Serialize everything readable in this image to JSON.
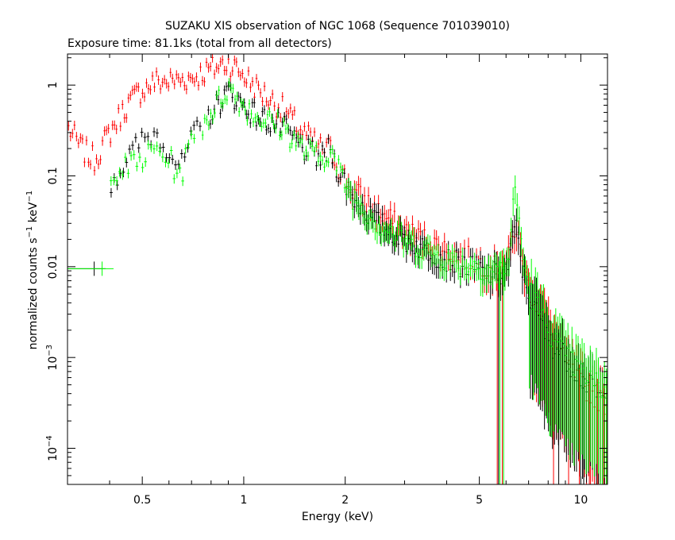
{
  "chart_data": {
    "type": "scatter",
    "title": "SUZAKU XIS observation of NGC 1068 (Sequence 701039010)",
    "subtitle": "Exposure time: 81.1ks (total from all detectors)",
    "xlabel": "Energy (keV)",
    "ylabel_main": "normalized counts s",
    "ylabel_exp1": "−1",
    "ylabel_mid": " keV",
    "ylabel_exp2": "−1",
    "x_scale": "log",
    "y_scale": "log",
    "xlim": [
      0.3,
      12
    ],
    "ylim": [
      4e-05,
      2.2
    ],
    "x_ticks": [
      {
        "value": 0.5,
        "label": "0.5"
      },
      {
        "value": 1,
        "label": "1"
      },
      {
        "value": 2,
        "label": "2"
      },
      {
        "value": 5,
        "label": "5"
      },
      {
        "value": 10,
        "label": "10"
      }
    ],
    "y_ticks": [
      {
        "value": 1,
        "label": "1"
      },
      {
        "value": 0.1,
        "label": "0.1"
      },
      {
        "value": 0.01,
        "label": "0.01"
      },
      {
        "value": 0.001,
        "base": "10",
        "exp": "−3"
      },
      {
        "value": 0.0001,
        "base": "10",
        "exp": "−4"
      }
    ],
    "series": [
      {
        "color": "#ff0000",
        "anchors": [
          [
            0.3,
            0.35
          ],
          [
            0.33,
            0.2
          ],
          [
            0.36,
            0.15
          ],
          [
            0.4,
            0.3
          ],
          [
            0.45,
            0.6
          ],
          [
            0.5,
            0.9
          ],
          [
            0.55,
            1.1
          ],
          [
            0.6,
            1.1
          ],
          [
            0.7,
            1.2
          ],
          [
            0.8,
            1.5
          ],
          [
            0.9,
            1.8
          ],
          [
            1.0,
            1.3
          ],
          [
            1.1,
            0.9
          ],
          [
            1.3,
            0.55
          ],
          [
            1.5,
            0.3
          ],
          [
            1.7,
            0.2
          ],
          [
            1.8,
            0.2
          ],
          [
            1.9,
            0.13
          ],
          [
            2.1,
            0.07
          ],
          [
            2.5,
            0.04
          ],
          [
            3,
            0.025
          ],
          [
            4,
            0.015
          ],
          [
            5,
            0.011
          ],
          [
            5.8,
            0.009
          ],
          [
            6.1,
            0.012
          ],
          [
            6.4,
            0.03
          ],
          [
            6.7,
            0.012
          ],
          [
            7,
            0.006
          ],
          [
            8,
            0.002
          ],
          [
            9,
            0.0008
          ],
          [
            10,
            0.0005
          ],
          [
            12,
            0.0003
          ]
        ],
        "xmin": 0.3,
        "xmax": 12,
        "segments": [
          {
            "from": 0.3,
            "to": 12,
            "n": 270
          }
        ],
        "sticks": [
          5.65,
          5.85,
          8.3,
          9.2,
          9.9,
          10.6,
          11.2,
          11.7
        ]
      },
      {
        "color": "#000000",
        "anchors": [
          [
            0.4,
            0.08
          ],
          [
            0.45,
            0.15
          ],
          [
            0.5,
            0.25
          ],
          [
            0.55,
            0.3
          ],
          [
            0.6,
            0.2
          ],
          [
            0.65,
            0.12
          ],
          [
            0.7,
            0.25
          ],
          [
            0.8,
            0.5
          ],
          [
            0.9,
            0.85
          ],
          [
            1.0,
            0.6
          ],
          [
            1.1,
            0.45
          ],
          [
            1.3,
            0.35
          ],
          [
            1.5,
            0.2
          ],
          [
            1.7,
            0.15
          ],
          [
            1.8,
            0.2
          ],
          [
            1.9,
            0.12
          ],
          [
            2.1,
            0.06
          ],
          [
            2.5,
            0.03
          ],
          [
            3,
            0.02
          ],
          [
            4,
            0.012
          ],
          [
            5,
            0.009
          ],
          [
            5.8,
            0.008
          ],
          [
            6.1,
            0.01
          ],
          [
            6.4,
            0.03
          ],
          [
            6.7,
            0.01
          ],
          [
            7,
            0.005
          ],
          [
            8,
            0.0015
          ],
          [
            9,
            0.001
          ],
          [
            10,
            0.0006
          ],
          [
            12,
            0.0003
          ]
        ],
        "xmin": 0.4,
        "xmax": 12,
        "segments": [
          {
            "from": 0.4,
            "to": 0.75,
            "n": 30
          },
          {
            "from": 0.78,
            "to": 12,
            "n": 200
          }
        ],
        "sticks": [
          5.7,
          8.6,
          10.2
        ],
        "isolated": [
          {
            "x": 0.36,
            "y": 0.0095
          }
        ]
      },
      {
        "color": "#00ff00",
        "anchors": [
          [
            0.4,
            0.12
          ],
          [
            0.45,
            0.12
          ],
          [
            0.5,
            0.15
          ],
          [
            0.55,
            0.2
          ],
          [
            0.6,
            0.15
          ],
          [
            0.65,
            0.1
          ],
          [
            0.7,
            0.25
          ],
          [
            0.8,
            0.5
          ],
          [
            0.9,
            0.95
          ],
          [
            1.0,
            0.6
          ],
          [
            1.1,
            0.45
          ],
          [
            1.3,
            0.35
          ],
          [
            1.5,
            0.2
          ],
          [
            1.7,
            0.15
          ],
          [
            1.8,
            0.2
          ],
          [
            1.9,
            0.12
          ],
          [
            2.1,
            0.06
          ],
          [
            2.5,
            0.03
          ],
          [
            3,
            0.02
          ],
          [
            4,
            0.012
          ],
          [
            5,
            0.01
          ],
          [
            5.8,
            0.009
          ],
          [
            6.1,
            0.012
          ],
          [
            6.4,
            0.08
          ],
          [
            6.7,
            0.015
          ],
          [
            7,
            0.006
          ],
          [
            8,
            0.002
          ],
          [
            9,
            0.001
          ],
          [
            10,
            0.0007
          ],
          [
            12,
            0.0004
          ]
        ],
        "xmin": 0.4,
        "xmax": 12,
        "segments": [
          {
            "from": 0.4,
            "to": 0.72,
            "n": 30
          },
          {
            "from": 0.75,
            "to": 12,
            "n": 200
          }
        ],
        "sticks": [
          5.75,
          5.9
        ],
        "isolated": [
          {
            "x": 0.38,
            "y": 0.0095
          }
        ]
      }
    ]
  }
}
